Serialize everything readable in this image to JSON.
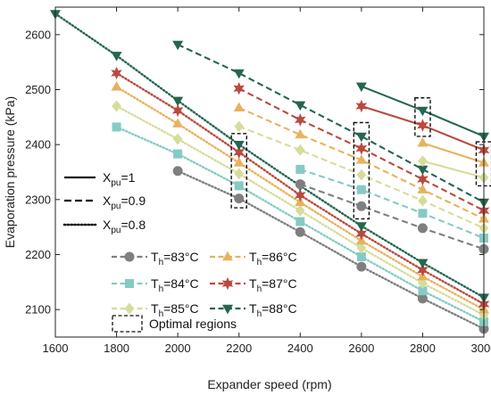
{
  "chart_data": {
    "type": "line",
    "xlabel": "Expander speed (rpm)",
    "ylabel": "Evaporation pressure (kPa)",
    "xlim": [
      1600,
      3000
    ],
    "ylim": [
      2050,
      2650
    ],
    "xticks": [
      1600,
      1800,
      2000,
      2200,
      2400,
      2600,
      2800,
      3000
    ],
    "yticks": [
      2100,
      2200,
      2300,
      2400,
      2500,
      2600
    ],
    "grid": false,
    "line_style_legend": [
      {
        "style": "solid",
        "label_main": "X",
        "label_sub": "pu",
        "label_rest": "=1"
      },
      {
        "style": "dashed",
        "label_main": "X",
        "label_sub": "pu",
        "label_rest": "=0.9"
      },
      {
        "style": "dotted",
        "label_main": "X",
        "label_sub": "pu",
        "label_rest": "=0.8"
      }
    ],
    "temperature_legend": [
      {
        "temp": "83",
        "color": "#7f7f7f",
        "marker": "circle"
      },
      {
        "temp": "84",
        "color": "#84cbc3",
        "marker": "square"
      },
      {
        "temp": "85",
        "color": "#d7dc9b",
        "marker": "diamond"
      },
      {
        "temp": "86",
        "color": "#e7b25e",
        "marker": "triangle-up"
      },
      {
        "temp": "87",
        "color": "#b94a3f",
        "marker": "star"
      },
      {
        "temp": "88",
        "color": "#25664f",
        "marker": "triangle-down"
      }
    ],
    "temp_prefix": "T",
    "temp_sub": "h",
    "temp_suffix": "°C",
    "optimal_label": "Optimal regions",
    "series": [
      {
        "temp": "83",
        "style": "dotted",
        "x": [
          2000,
          2200,
          2400,
          2600,
          2800,
          3000
        ],
        "y": [
          2352,
          2302,
          2241,
          2178,
          2120,
          2065
        ]
      },
      {
        "temp": "84",
        "style": "dotted",
        "x": [
          1800,
          2000,
          2200,
          2400,
          2600,
          2800,
          3000
        ],
        "y": [
          2432,
          2383,
          2325,
          2260,
          2196,
          2134,
          2078
        ]
      },
      {
        "temp": "85",
        "style": "dotted",
        "x": [
          1800,
          2000,
          2200,
          2400,
          2600,
          2800,
          3000
        ],
        "y": [
          2470,
          2410,
          2347,
          2280,
          2212,
          2148,
          2090
        ]
      },
      {
        "temp": "86",
        "style": "dotted",
        "x": [
          1800,
          2000,
          2200,
          2400,
          2600,
          2800,
          3000
        ],
        "y": [
          2505,
          2438,
          2367,
          2295,
          2225,
          2160,
          2100
        ]
      },
      {
        "temp": "87",
        "style": "dotted",
        "x": [
          1800,
          2000,
          2200,
          2400,
          2600,
          2800,
          3000
        ],
        "y": [
          2530,
          2462,
          2386,
          2308,
          2238,
          2172,
          2110
        ]
      },
      {
        "temp": "88",
        "style": "dotted",
        "x": [
          1600,
          1800,
          2000,
          2200,
          2400,
          2600,
          2800,
          3000
        ],
        "y": [
          2638,
          2562,
          2480,
          2400,
          2325,
          2252,
          2185,
          2122
        ]
      },
      {
        "temp": "83",
        "style": "dashed",
        "x": [
          2400,
          2600,
          2800,
          3000
        ],
        "y": [
          2328,
          2288,
          2248,
          2210
        ]
      },
      {
        "temp": "84",
        "style": "dashed",
        "x": [
          2400,
          2600,
          2800,
          3000
        ],
        "y": [
          2355,
          2318,
          2275,
          2230
        ]
      },
      {
        "temp": "85",
        "style": "dashed",
        "x": [
          2200,
          2400,
          2600,
          2800,
          3000
        ],
        "y": [
          2433,
          2390,
          2345,
          2298,
          2248
        ]
      },
      {
        "temp": "86",
        "style": "dashed",
        "x": [
          2200,
          2400,
          2600,
          2800,
          3000
        ],
        "y": [
          2467,
          2418,
          2372,
          2318,
          2265
        ]
      },
      {
        "temp": "87",
        "style": "dashed",
        "x": [
          2200,
          2400,
          2600,
          2800,
          3000
        ],
        "y": [
          2502,
          2445,
          2393,
          2337,
          2280
        ]
      },
      {
        "temp": "88",
        "style": "dashed",
        "x": [
          2000,
          2200,
          2400,
          2600,
          2800,
          3000
        ],
        "y": [
          2582,
          2530,
          2472,
          2415,
          2355,
          2295
        ]
      },
      {
        "temp": "85",
        "style": "solid",
        "x": [
          2800,
          3000
        ],
        "y": [
          2370,
          2340
        ]
      },
      {
        "temp": "86",
        "style": "solid",
        "x": [
          2800,
          3000
        ],
        "y": [
          2403,
          2367
        ]
      },
      {
        "temp": "87",
        "style": "solid",
        "x": [
          2600,
          2800,
          3000
        ],
        "y": [
          2470,
          2435,
          2390
        ]
      },
      {
        "temp": "88",
        "style": "solid",
        "x": [
          2600,
          2800,
          3000
        ],
        "y": [
          2506,
          2462,
          2415
        ]
      }
    ],
    "optimal_regions": [
      {
        "x": [
          2175,
          2225
        ],
        "y": [
          2285,
          2420
        ]
      },
      {
        "x": [
          2575,
          2625
        ],
        "y": [
          2265,
          2440
        ]
      },
      {
        "x": [
          2775,
          2825
        ],
        "y": [
          2415,
          2485
        ]
      },
      {
        "x": [
          2975,
          3025
        ],
        "y": [
          2325,
          2405
        ]
      }
    ]
  }
}
